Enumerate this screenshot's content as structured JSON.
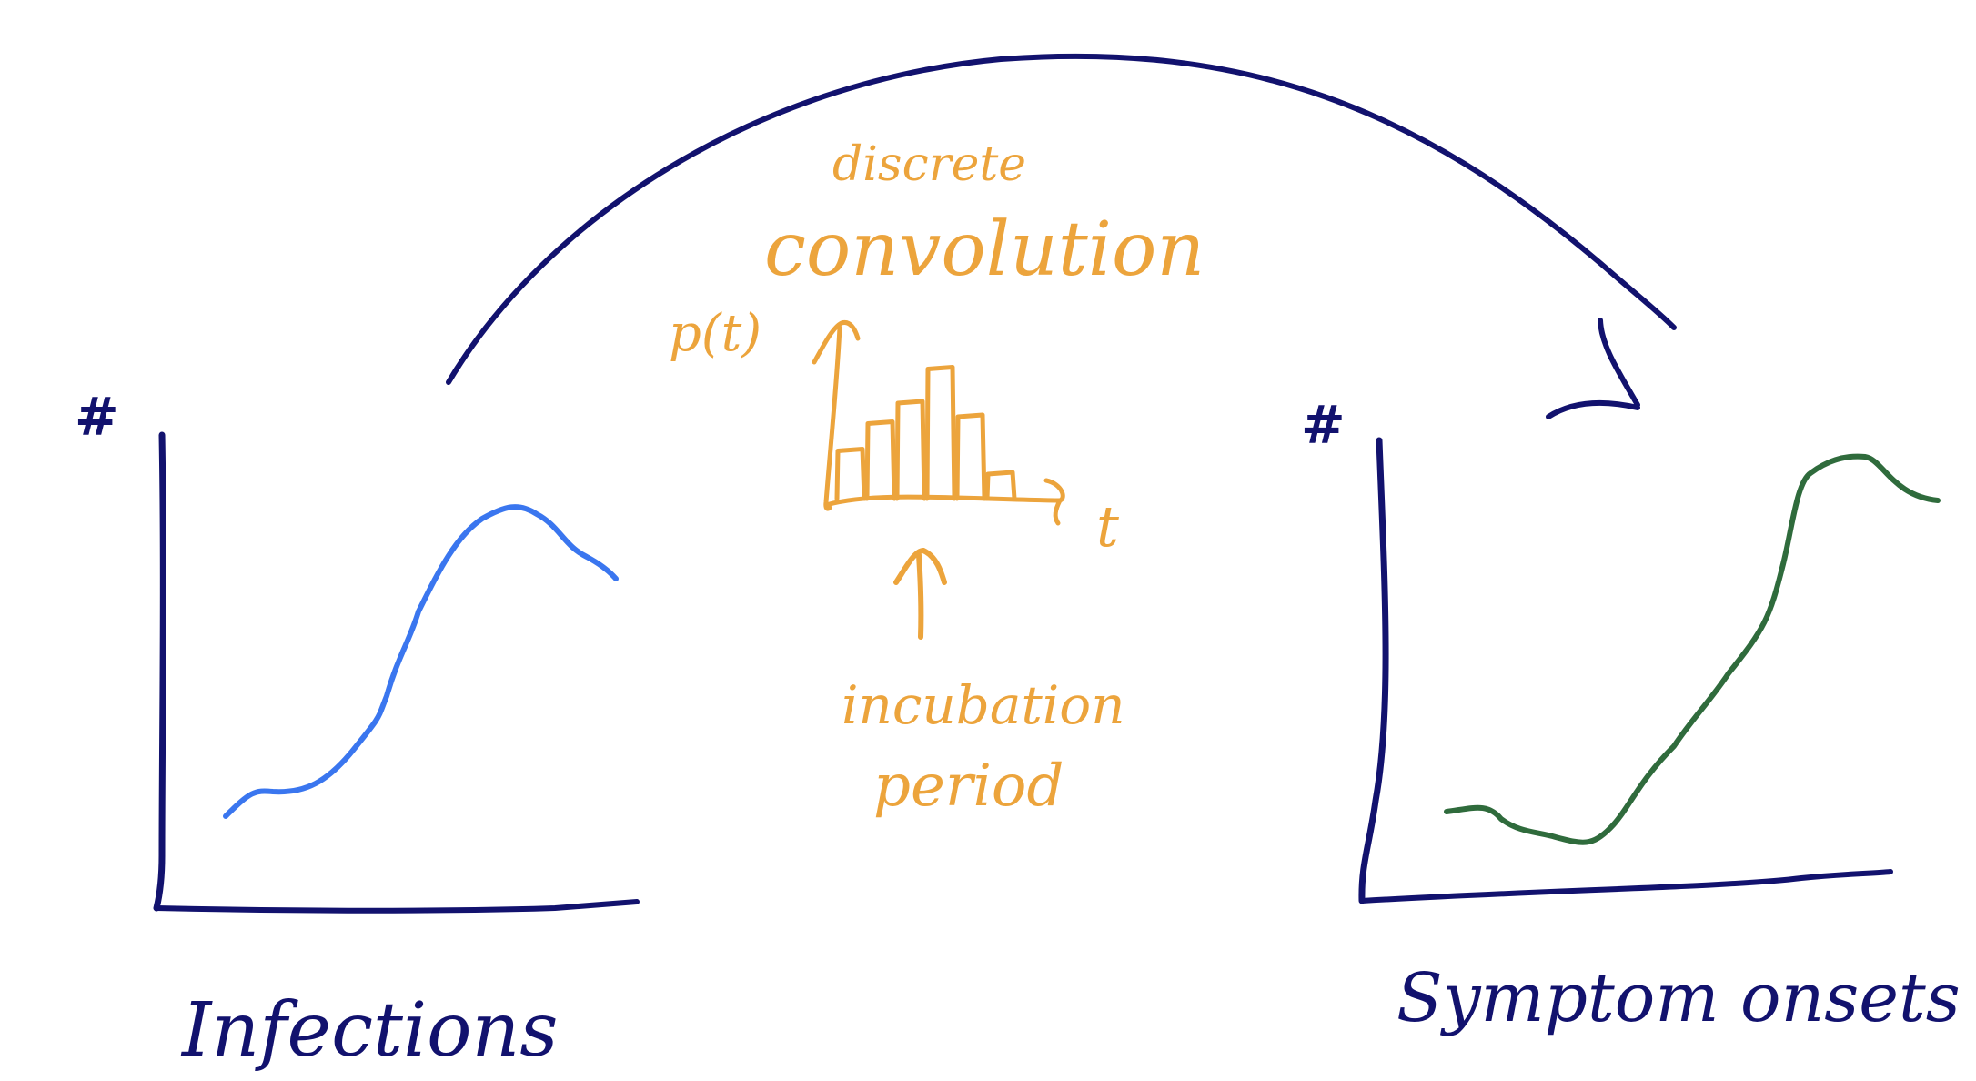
{
  "colors": {
    "navy": "#12126e",
    "orange": "#eca43c",
    "infections_curve": "#3a76ef",
    "onsets_curve": "#2f6b3c",
    "background": "#ffffff"
  },
  "left_panel": {
    "axis_symbol": "#",
    "label": "Infections"
  },
  "right_panel": {
    "axis_symbol": "#",
    "label": "Symptom onsets"
  },
  "center": {
    "heading_small": "discrete",
    "heading_large": "convolution",
    "y_axis_label": "p(t)",
    "x_axis_label": "t",
    "caption_line1": "incubation",
    "caption_line2": "period",
    "histogram_bars": [
      0.35,
      0.55,
      0.7,
      0.95,
      0.6,
      0.18
    ]
  }
}
